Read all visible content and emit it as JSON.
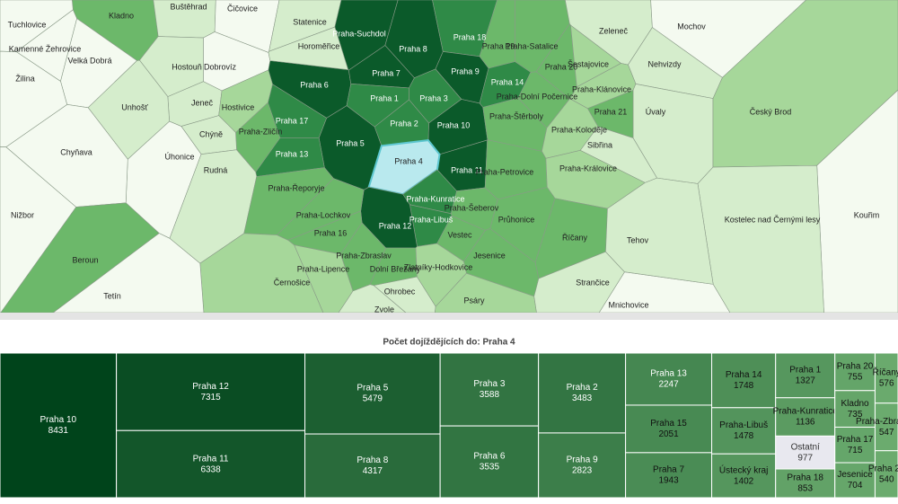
{
  "map": {
    "regions": [
      "Kladno",
      "Buštěhrad",
      "Čičovice",
      "Statenice",
      "Tuchlovice",
      "Kamenné Žehrovice",
      "Velká Dobrá",
      "Hostouň",
      "Dobrovíz",
      "Praha 6",
      "Praha-Suchdol",
      "Horoměřice",
      "Praha 8",
      "Praha 18",
      "Praha 19",
      "Praha 9",
      "Praha-Satalice",
      "Zeleneč",
      "Mochov",
      "Nehvizdy",
      "Praha 14",
      "Praha 20",
      "Šestajovice",
      "Praha 7",
      "Praha 1",
      "Praha 3",
      "Praha 10",
      "Praha 2",
      "Praha 17",
      "Praha 5",
      "Praha 13",
      "Praha-Zličín",
      "Jeneč",
      "Unhošť",
      "Hostivice",
      "Chýně",
      "Úhonice",
      "Rudná",
      "Chyňava",
      "Praha-Řeporyje",
      "Praha 11",
      "Praha 4",
      "Praha-Petrovice",
      "Praha-Štěrboly",
      "Praha-Dolní Počernice",
      "Praha-Klánovice",
      "Úvaly",
      "Praha 21",
      "Praha-Koloděje",
      "Sibřina",
      "Praha-Královice",
      "Praha-Kunratice",
      "Praha-Libuš",
      "Praha 12",
      "Praha-Šeberov",
      "Vestec",
      "Jesenice",
      "Praha-Lochkov",
      "Praha 16",
      "Praha-Zbraslav",
      "Praha-Lipence",
      "Dolní Břežany",
      "Zlatníky-Hodkovice",
      "Ohrobec",
      "Psáry",
      "Říčany",
      "Průhonice",
      "Beroun",
      "Černošice",
      "Zvole",
      "Mnichovice",
      "Český Brod",
      "Kouřim",
      "Kostelec nad Černými lesy",
      "Žilina",
      "Nižbor",
      "Tetín",
      "Strančice",
      "Tehov"
    ]
  },
  "chart_data": {
    "type": "treemap",
    "title": "Počet dojíždějících do: Praha 4",
    "categories": [
      "Praha 10",
      "Praha 12",
      "Praha 11",
      "Praha 5",
      "Praha 8",
      "Praha 3",
      "Praha 6",
      "Praha 2",
      "Praha 9",
      "Praha 13",
      "Praha 15",
      "Praha 7",
      "Praha 14",
      "Praha-Libuš",
      "Ústecký kraj",
      "Praha 1",
      "Praha-Kunratice",
      "Ostatní",
      "Praha 18",
      "Praha 20",
      "Kladno",
      "Praha 17",
      "Jesenice",
      "Říčany",
      "Praha-Zbraslav",
      "Praha 21"
    ],
    "values": [
      8431,
      7315,
      6338,
      5479,
      4317,
      3588,
      3535,
      3483,
      2823,
      2247,
      2051,
      1943,
      1748,
      1478,
      1402,
      1327,
      1136,
      977,
      853,
      755,
      735,
      715,
      704,
      576,
      547,
      540
    ],
    "color_low": "#8fce8a",
    "color_high": "#00441b",
    "highlight": {
      "category": "Ostatní",
      "color": "#e8e8ef"
    }
  }
}
